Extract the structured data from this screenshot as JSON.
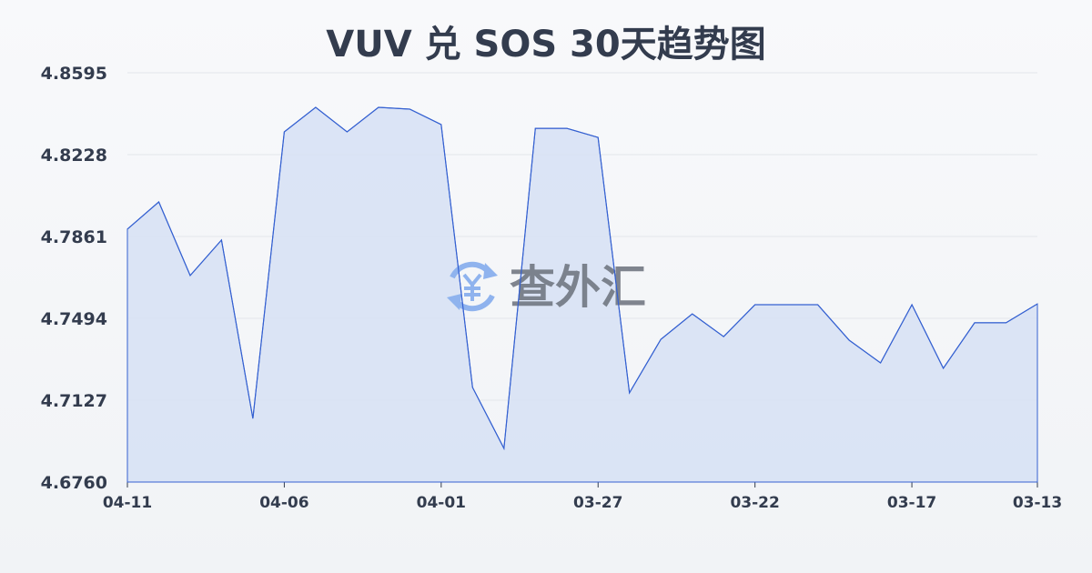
{
  "chart_data": {
    "type": "area",
    "title": "VUV 兑 SOS 30天趋势图",
    "xlabel": "",
    "ylabel": "",
    "ylim": [
      4.676,
      4.8595
    ],
    "yticks": [
      "4.8595",
      "4.8228",
      "4.7861",
      "4.7494",
      "4.7127",
      "4.6760"
    ],
    "xticks": [
      "04-11",
      "04-06",
      "04-01",
      "03-27",
      "03-22",
      "03-17",
      "03-13"
    ],
    "grid": true,
    "colors": {
      "line": "#3561d1",
      "fill": "#d6e1f5"
    },
    "x": [
      "04-11",
      "04-10",
      "04-09",
      "04-08",
      "04-07",
      "04-06",
      "04-05",
      "04-04",
      "04-03",
      "04-02",
      "04-01",
      "03-31",
      "03-30",
      "03-29",
      "03-28",
      "03-27",
      "03-26",
      "03-25",
      "03-24",
      "03-23",
      "03-22",
      "03-21",
      "03-20",
      "03-19",
      "03-18",
      "03-17",
      "03-16",
      "03-15",
      "03-14",
      "03-13"
    ],
    "values": [
      4.7894,
      4.8016,
      4.7686,
      4.7845,
      4.7045,
      4.833,
      4.844,
      4.833,
      4.844,
      4.8432,
      4.8363,
      4.7184,
      4.6911,
      4.8346,
      4.8346,
      4.8305,
      4.716,
      4.74,
      4.7514,
      4.7412,
      4.7555,
      4.7555,
      4.7555,
      4.7396,
      4.7294,
      4.7555,
      4.727,
      4.7474,
      4.7474,
      4.7559
    ]
  },
  "watermark": {
    "text": "查外汇",
    "icon": "yen-exchange-icon"
  }
}
